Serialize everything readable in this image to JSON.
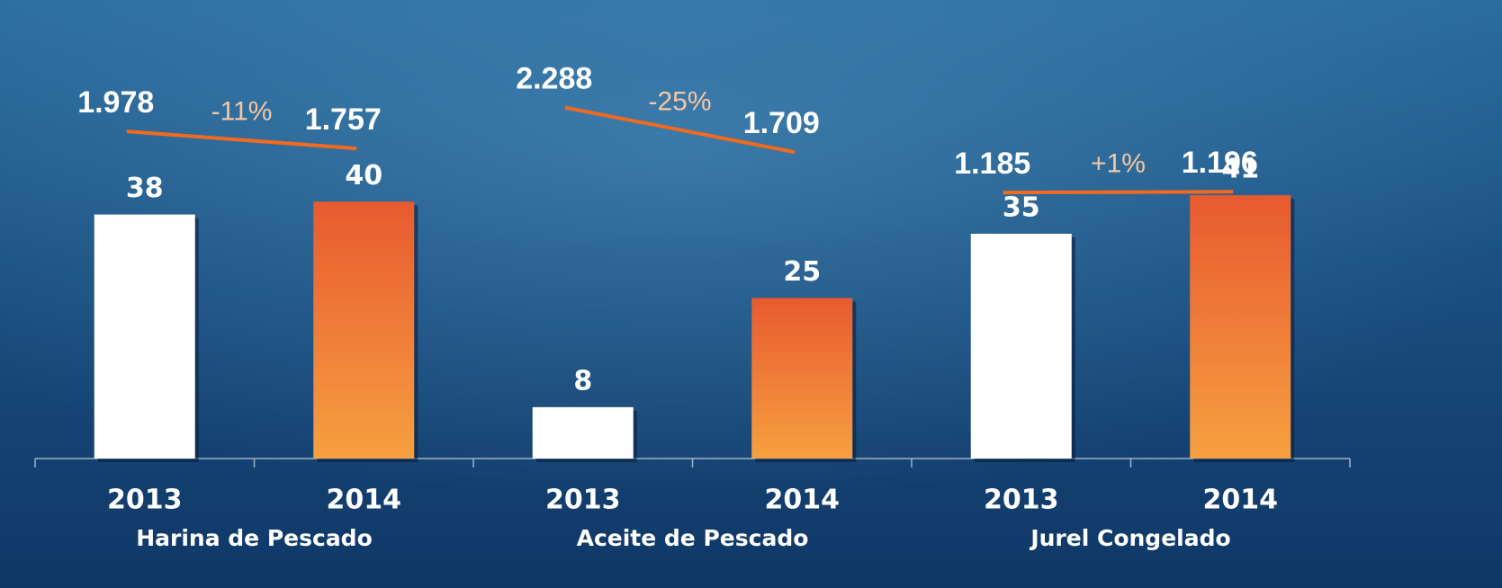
{
  "chart_data": {
    "type": "bar",
    "ylim": [
      0,
      42
    ],
    "y2lim": [
      1000,
      2400
    ],
    "colors": [
      "#ffffff",
      "#ec6a32"
    ],
    "line_color": "#f06a20",
    "groups": [
      {
        "name": "Harina de Pescado",
        "categories": [
          "2013",
          "2014"
        ],
        "values": [
          38,
          40
        ],
        "prices": [
          1978,
          1757
        ],
        "price_labels": [
          "1.978",
          "1.757"
        ],
        "change": -11,
        "change_label": "-11%"
      },
      {
        "name": "Aceite de Pescado",
        "categories": [
          "2013",
          "2014"
        ],
        "values": [
          8,
          25
        ],
        "prices": [
          2288,
          1709
        ],
        "price_labels": [
          "2.288",
          "1.709"
        ],
        "change": -25,
        "change_label": "-25%"
      },
      {
        "name": "Jurel Congelado",
        "categories": [
          "2013",
          "2014"
        ],
        "values": [
          35,
          41
        ],
        "prices": [
          1185,
          1196
        ],
        "price_labels": [
          "1.185",
          "1.196"
        ],
        "change": 1,
        "change_label": "+1%"
      }
    ]
  }
}
